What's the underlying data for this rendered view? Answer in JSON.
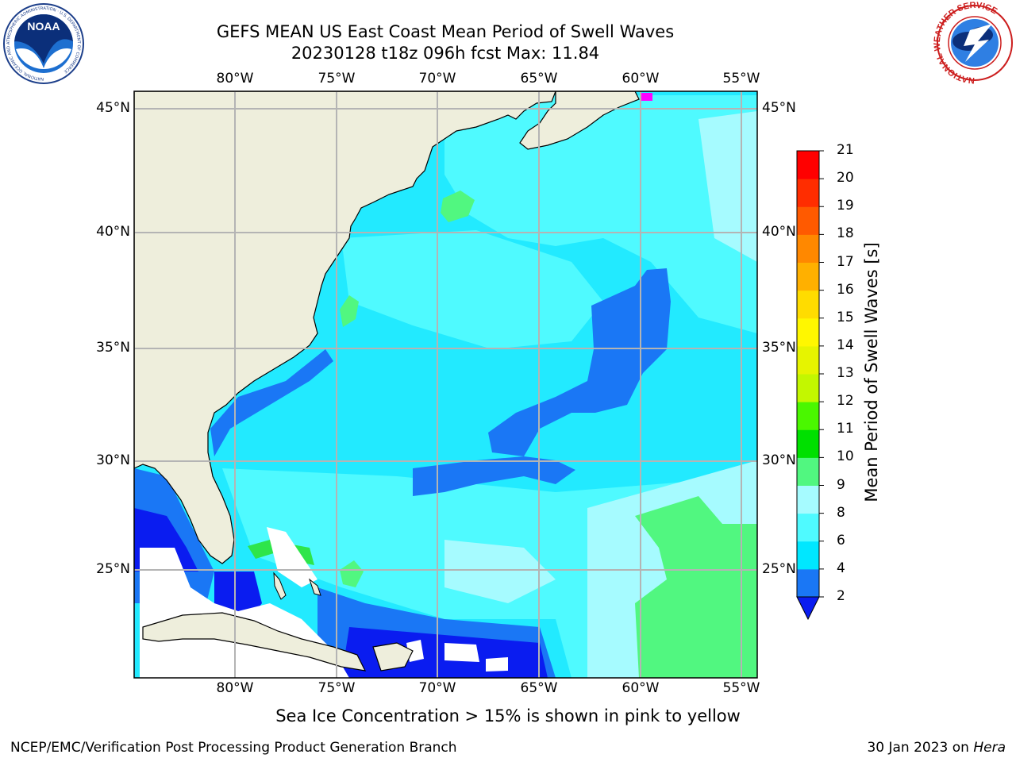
{
  "title": {
    "line1": "GEFS MEAN US East Coast Mean Period of Swell Waves",
    "line2": "20230128 t18z 096h fcst   Max: 11.84"
  },
  "map": {
    "lon_labels": [
      "80°W",
      "75°W",
      "70°W",
      "65°W",
      "60°W",
      "55°W"
    ],
    "lat_labels": [
      "45°N",
      "40°N",
      "35°N",
      "30°N",
      "25°N"
    ],
    "lon_range": [
      -85,
      -54
    ],
    "lat_range": [
      20,
      46
    ]
  },
  "colorbar": {
    "label": "Mean Period of Swell Waves [s]",
    "ticks": [
      "2",
      "4",
      "6",
      "8",
      "9",
      "10",
      "11",
      "12",
      "13",
      "14",
      "15",
      "16",
      "17",
      "18",
      "19",
      "20",
      "21"
    ],
    "colors": [
      "#0a1cf0",
      "#1a77f5",
      "#00e7ff",
      "#4ffaff",
      "#a6fbff",
      "#51f780",
      "#00e000",
      "#4af700",
      "#c3f700",
      "#e6f400",
      "#fff700",
      "#ffdc00",
      "#ffb000",
      "#ff8800",
      "#ff5a00",
      "#ff2d00",
      "#ff0000"
    ]
  },
  "colors": {
    "land": "#eeeedc",
    "ocean_base": "#22eaff",
    "grid": "#b4b4b4"
  },
  "subtitle": "Sea Ice Concentration > 15% is shown in pink to yellow",
  "footer": {
    "left": "NCEP/EMC/Verification Post Processing Product Generation Branch",
    "right_date": "30 Jan 2023 on ",
    "right_host": "Hera"
  },
  "logos": {
    "noaa_text": "NOAA",
    "noaa_ring": "NATIONAL OCEANIC AND ATMOSPHERIC ADMINISTRATION · U.S. DEPARTMENT OF COMMERCE",
    "nws_ring": "NATIONAL WEATHER SERVICE"
  }
}
